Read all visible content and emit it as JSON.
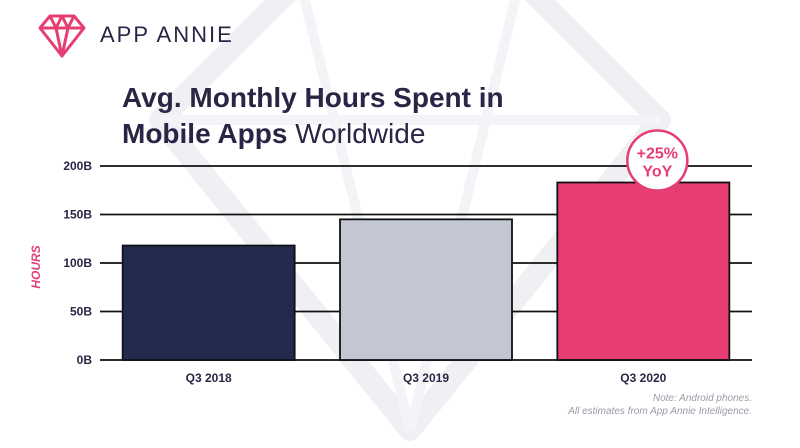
{
  "brand": {
    "name": "APP ANNIE",
    "logo_icon": "diamond-logo-icon"
  },
  "title": {
    "line1": "Avg. Monthly Hours Spent in",
    "line2_bold": "Mobile Apps",
    "line2_light": "Worldwide"
  },
  "colors": {
    "accent": "#e63e72",
    "navy": "#222a4f",
    "grey": "#c3c6d3",
    "text": "#2a2545"
  },
  "badge": {
    "line1": "+25%",
    "line2": "YoY"
  },
  "footnote": {
    "line1": "Note: Android phones.",
    "line2": "All estimates from App Annie Intelligence."
  },
  "chart_data": {
    "type": "bar",
    "categories": [
      "Q3 2018",
      "Q3 2019",
      "Q3 2020"
    ],
    "values": [
      118,
      145,
      183
    ],
    "bar_colors": [
      "#222a4f",
      "#c3c6d3",
      "#e63e72"
    ],
    "ylabel": "HOURS",
    "ylim": [
      0,
      200
    ],
    "yticks": [
      0,
      50,
      100,
      150,
      200
    ],
    "ytick_labels": [
      "0B",
      "50B",
      "100B",
      "150B",
      "200B"
    ],
    "grid": true
  }
}
